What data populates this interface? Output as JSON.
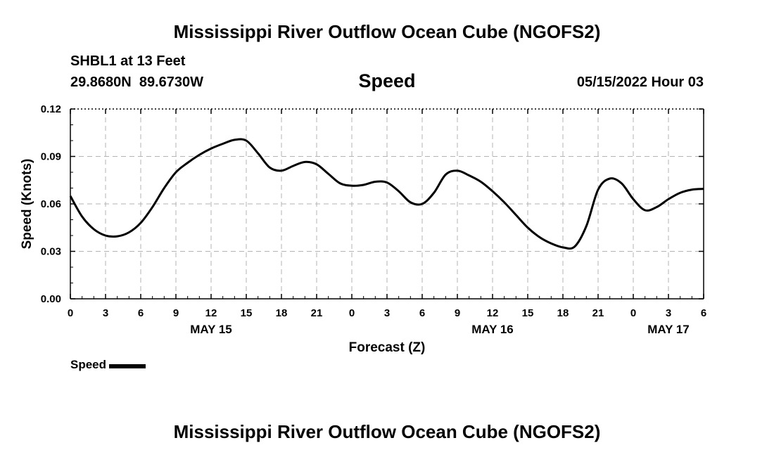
{
  "header": {
    "title": "Mississippi River Outflow Ocean Cube (NGOFS2)",
    "station": "SHBL1 at 13 Feet",
    "coords": "29.8680N  89.6730W",
    "panel_title": "Speed",
    "date": "05/15/2022 Hour 03"
  },
  "footer": {
    "title": "Mississippi River Outflow Ocean Cube (NGOFS2)"
  },
  "legend": {
    "label": "Speed",
    "color": "#000000"
  },
  "chart_data": {
    "type": "line",
    "title": "Speed",
    "xlabel": "Forecast (Z)",
    "ylabel": "Speed (Knots)",
    "xlim": [
      0,
      54
    ],
    "ylim": [
      0,
      0.12
    ],
    "grid": true,
    "x_ticks": [
      {
        "x": 0,
        "label": "0"
      },
      {
        "x": 3,
        "label": "3"
      },
      {
        "x": 6,
        "label": "6"
      },
      {
        "x": 9,
        "label": "9"
      },
      {
        "x": 12,
        "label": "12"
      },
      {
        "x": 15,
        "label": "15"
      },
      {
        "x": 18,
        "label": "18"
      },
      {
        "x": 21,
        "label": "21"
      },
      {
        "x": 24,
        "label": "0"
      },
      {
        "x": 27,
        "label": "3"
      },
      {
        "x": 30,
        "label": "6"
      },
      {
        "x": 33,
        "label": "9"
      },
      {
        "x": 36,
        "label": "12"
      },
      {
        "x": 39,
        "label": "15"
      },
      {
        "x": 42,
        "label": "18"
      },
      {
        "x": 45,
        "label": "21"
      },
      {
        "x": 48,
        "label": "0"
      },
      {
        "x": 51,
        "label": "3"
      },
      {
        "x": 54,
        "label": "6"
      }
    ],
    "y_ticks": [
      {
        "y": 0,
        "label": "0.00"
      },
      {
        "y": 0.03,
        "label": "0.03"
      },
      {
        "y": 0.06,
        "label": "0.06"
      },
      {
        "y": 0.09,
        "label": "0.09"
      },
      {
        "y": 0.12,
        "label": "0.12"
      }
    ],
    "day_labels": [
      {
        "x": 12,
        "label": "MAY 15"
      },
      {
        "x": 36,
        "label": "MAY 16"
      },
      {
        "x": 51,
        "label": "MAY 17"
      }
    ],
    "series": [
      {
        "name": "Speed",
        "x": [
          0,
          1,
          2,
          3,
          4,
          5,
          6,
          7,
          8,
          9,
          10,
          11,
          12,
          13,
          14,
          15,
          16,
          17,
          18,
          19,
          20,
          21,
          22,
          23,
          24,
          25,
          26,
          27,
          28,
          29,
          30,
          31,
          32,
          33,
          34,
          35,
          36,
          37,
          38,
          39,
          40,
          41,
          42,
          43,
          44,
          45,
          46,
          47,
          48,
          49,
          50,
          51,
          52,
          53,
          54
        ],
        "values": [
          0.065,
          0.052,
          0.044,
          0.04,
          0.0395,
          0.042,
          0.048,
          0.058,
          0.07,
          0.08,
          0.086,
          0.091,
          0.095,
          0.098,
          0.1005,
          0.1,
          0.092,
          0.083,
          0.081,
          0.084,
          0.0865,
          0.085,
          0.079,
          0.073,
          0.0715,
          0.072,
          0.074,
          0.0735,
          0.068,
          0.061,
          0.06,
          0.067,
          0.0785,
          0.081,
          0.078,
          0.074,
          0.068,
          0.061,
          0.053,
          0.045,
          0.039,
          0.035,
          0.0325,
          0.033,
          0.046,
          0.069,
          0.076,
          0.073,
          0.063,
          0.056,
          0.058,
          0.063,
          0.067,
          0.069,
          0.0695
        ]
      }
    ]
  }
}
